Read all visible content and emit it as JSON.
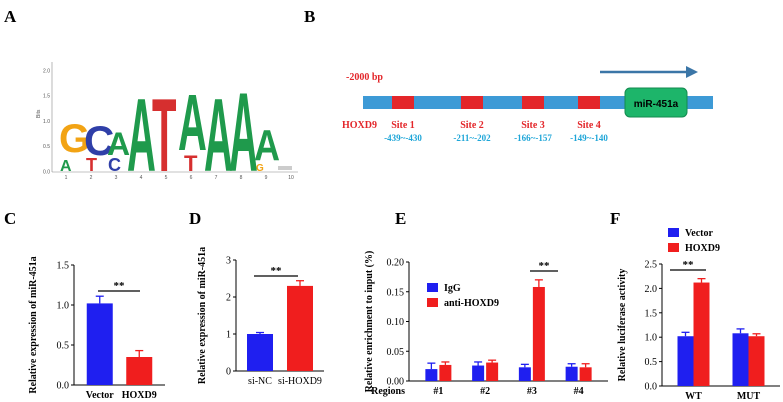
{
  "panels": {
    "A": "A",
    "B": "B",
    "C": "C",
    "D": "D",
    "E": "E",
    "F": "F"
  },
  "logo": {
    "yaxis_label": "Bits",
    "yticks": [
      "0.0",
      "0.5",
      "1.0",
      "1.5",
      "2.0"
    ],
    "xticks": [
      "1",
      "2",
      "3",
      "4",
      "5",
      "6",
      "7",
      "8",
      "9",
      "10"
    ],
    "letters": "GCAATAAAA"
  },
  "promoter": {
    "start_label": "-2000 bp",
    "factor": "HOXD9",
    "gene": "miR-451a",
    "sites": [
      {
        "name": "Site 1",
        "range": "-439~-430"
      },
      {
        "name": "Site 2",
        "range": "-211~-202"
      },
      {
        "name": "Site 3",
        "range": "-166~-157"
      },
      {
        "name": "Site 4",
        "range": "-149~-140"
      }
    ],
    "colors": {
      "bar": "#3d9ad6",
      "site": "#e3262a",
      "gene": "#1db56a",
      "arrow": "#3b76a7"
    }
  },
  "chart_data": [
    {
      "panel": "C",
      "type": "bar",
      "categories": [
        "Vector",
        "HOXD9"
      ],
      "values": [
        1.02,
        0.35
      ],
      "errors": [
        0.09,
        0.08
      ],
      "colors": [
        "#1f1ff0",
        "#f01e1e"
      ],
      "ylabel": "Relative expression of miR-451a",
      "ylim": [
        0,
        1.5
      ],
      "yticks": [
        "0.0",
        "0.5",
        "1.0",
        "1.5"
      ],
      "significance": "**"
    },
    {
      "panel": "D",
      "type": "bar",
      "categories": [
        "si-NC",
        "si-HOXD9"
      ],
      "values": [
        1.0,
        2.3
      ],
      "errors": [
        0.04,
        0.14
      ],
      "colors": [
        "#1f1ff0",
        "#f01e1e"
      ],
      "ylabel": "Relative expression of miR-451a",
      "ylim": [
        0,
        3
      ],
      "yticks": [
        "0",
        "1",
        "2",
        "3"
      ],
      "significance": "**"
    },
    {
      "panel": "E",
      "type": "bar",
      "xlabel": "Regions",
      "categories": [
        "#1",
        "#2",
        "#3",
        "#4"
      ],
      "series": [
        {
          "name": "IgG",
          "color": "#1f1ff0",
          "values": [
            0.02,
            0.026,
            0.023,
            0.024
          ],
          "errors": [
            0.01,
            0.006,
            0.005,
            0.005
          ]
        },
        {
          "name": "anti-HOXD9",
          "color": "#f01e1e",
          "values": [
            0.027,
            0.031,
            0.158,
            0.023
          ],
          "errors": [
            0.005,
            0.004,
            0.012,
            0.006
          ]
        }
      ],
      "ylabel": "Relative enrichment to input (%)",
      "ylim": [
        0,
        0.2
      ],
      "yticks": [
        "0.00",
        "0.05",
        "0.10",
        "0.15",
        "0.20"
      ],
      "significance": "**",
      "legend_position": "top-left"
    },
    {
      "panel": "F",
      "type": "bar",
      "categories": [
        "WT",
        "MUT"
      ],
      "series": [
        {
          "name": "Vector",
          "color": "#1f1ff0",
          "values": [
            1.02,
            1.08
          ],
          "errors": [
            0.08,
            0.09
          ]
        },
        {
          "name": "HOXD9",
          "color": "#f01e1e",
          "values": [
            2.12,
            1.02
          ],
          "errors": [
            0.08,
            0.05
          ]
        }
      ],
      "ylabel": "Relative luciferase activity",
      "ylim": [
        0,
        2.5
      ],
      "yticks": [
        "0.0",
        "0.5",
        "1.0",
        "1.5",
        "2.0",
        "2.5"
      ],
      "significance": "**",
      "legend_position": "top"
    }
  ]
}
